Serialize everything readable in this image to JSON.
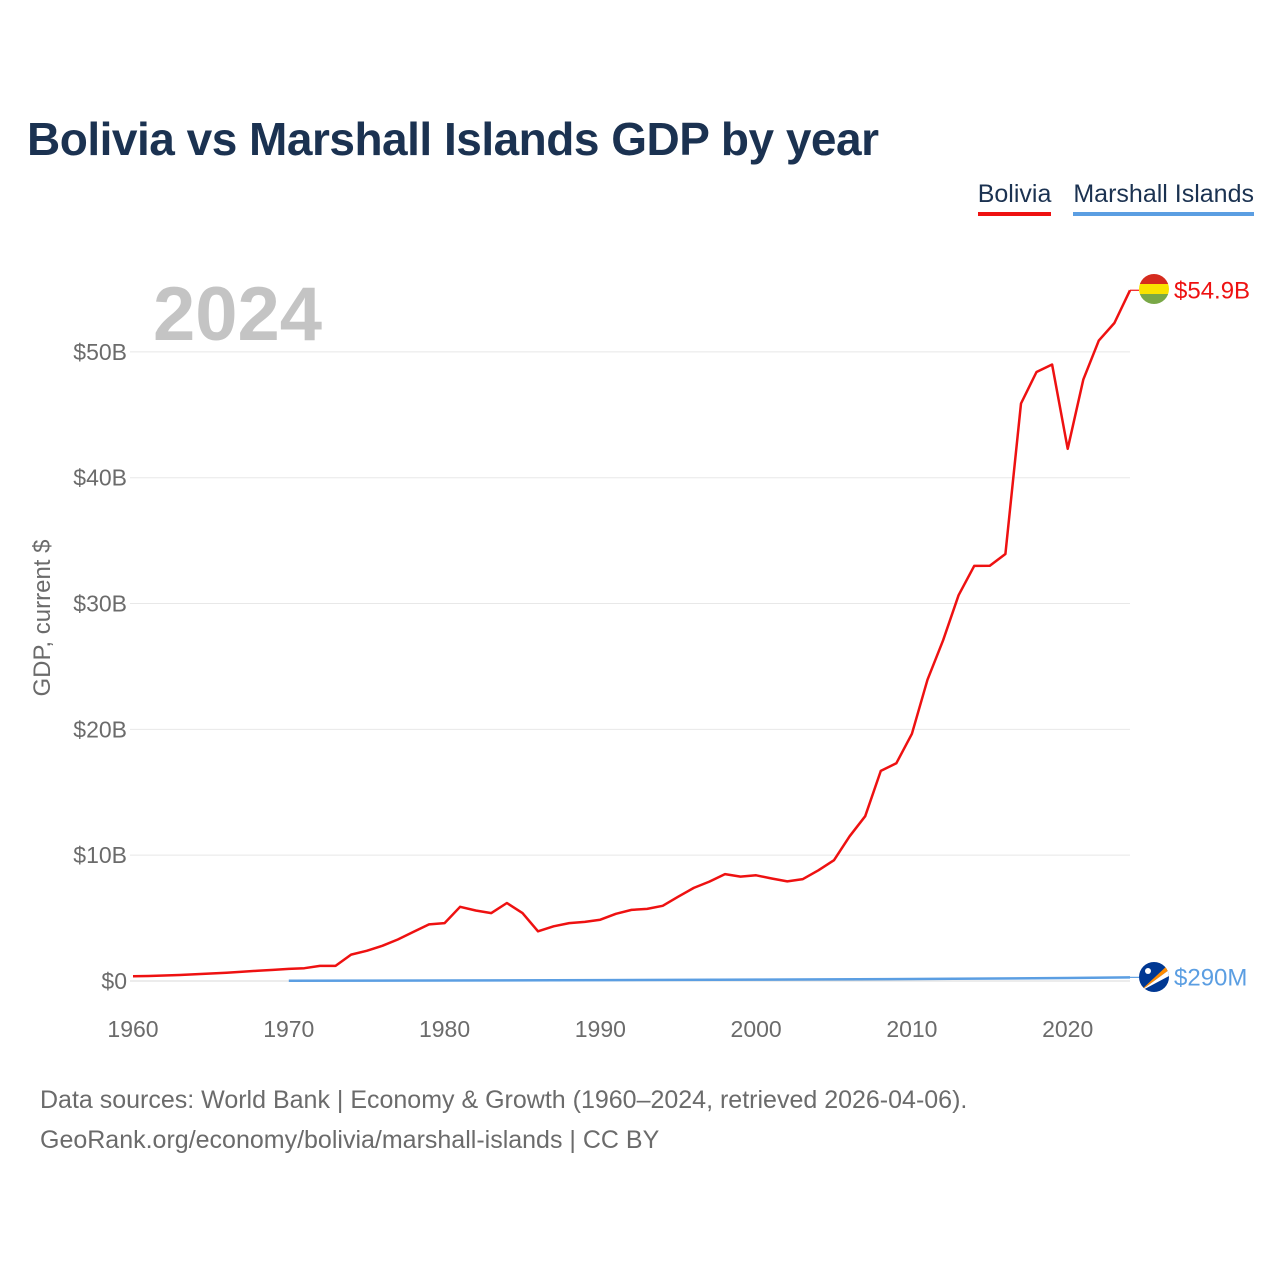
{
  "title": "Bolivia vs Marshall Islands GDP by year",
  "legend": [
    {
      "label": "Bolivia",
      "color": "#ee1111"
    },
    {
      "label": "Marshall Islands",
      "color": "#5b9ee2"
    }
  ],
  "year_watermark": "2024",
  "footer": {
    "line1": "Data sources: World Bank | Economy & Growth (1960–2024, retrieved 2026-04-06).",
    "line2": "GeoRank.org/economy/bolivia/marshall-islands | CC BY"
  },
  "chart_data": {
    "type": "line",
    "title": "Bolivia vs Marshall Islands GDP by year",
    "xlabel": "",
    "ylabel": "GDP, current $",
    "xlim": [
      1960,
      2024
    ],
    "ylim": [
      0,
      55
    ],
    "y_unit": "billions of US$",
    "x_ticks": [
      1960,
      1970,
      1980,
      1990,
      2000,
      2010,
      2020
    ],
    "y_ticks": [
      {
        "value": 0,
        "label": "$0"
      },
      {
        "value": 10,
        "label": "$10B"
      },
      {
        "value": 20,
        "label": "$20B"
      },
      {
        "value": 30,
        "label": "$30B"
      },
      {
        "value": 40,
        "label": "$40B"
      },
      {
        "value": 50,
        "label": "$50B"
      }
    ],
    "grid": true,
    "legend_position": "top-right",
    "series": [
      {
        "name": "Bolivia",
        "color": "#ee1111",
        "end_label": "$54.9B",
        "x": [
          1960,
          1961,
          1962,
          1963,
          1964,
          1965,
          1966,
          1967,
          1968,
          1969,
          1970,
          1971,
          1972,
          1973,
          1974,
          1975,
          1976,
          1977,
          1978,
          1979,
          1980,
          1981,
          1982,
          1983,
          1984,
          1985,
          1986,
          1987,
          1988,
          1989,
          1990,
          1991,
          1992,
          1993,
          1994,
          1995,
          1996,
          1997,
          1998,
          1999,
          2000,
          2001,
          2002,
          2003,
          2004,
          2005,
          2006,
          2007,
          2008,
          2009,
          2010,
          2011,
          2012,
          2013,
          2014,
          2015,
          2016,
          2017,
          2018,
          2019,
          2020,
          2021,
          2022,
          2023,
          2024
        ],
        "values": [
          0.37,
          0.4,
          0.44,
          0.48,
          0.53,
          0.6,
          0.66,
          0.73,
          0.82,
          0.88,
          0.96,
          1.02,
          1.2,
          1.2,
          2.1,
          2.4,
          2.8,
          3.3,
          3.9,
          4.5,
          4.6,
          5.9,
          5.6,
          5.4,
          6.2,
          5.4,
          3.95,
          4.35,
          4.6,
          4.7,
          4.87,
          5.34,
          5.65,
          5.73,
          5.98,
          6.7,
          7.4,
          7.9,
          8.5,
          8.3,
          8.4,
          8.15,
          7.92,
          8.1,
          8.8,
          9.6,
          11.5,
          13.1,
          16.7,
          17.3,
          19.65,
          23.95,
          27.08,
          30.66,
          32.99,
          33.0,
          33.94,
          45.9,
          48.4,
          49.0,
          42.3,
          47.8,
          50.9,
          52.3,
          54.9
        ]
      },
      {
        "name": "Marshall Islands",
        "color": "#5b9ee2",
        "end_label": "$290M",
        "x": [
          1970,
          1980,
          1990,
          2000,
          2010,
          2020,
          2024
        ],
        "values": [
          0.02,
          0.04,
          0.07,
          0.11,
          0.16,
          0.24,
          0.29
        ]
      }
    ]
  }
}
